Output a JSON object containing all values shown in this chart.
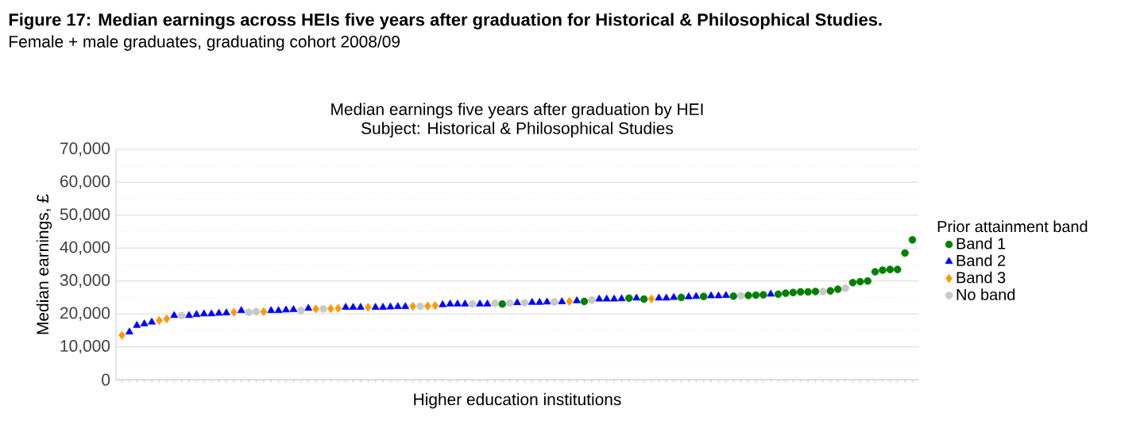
{
  "chart_data": {
    "type": "scatter",
    "title": "**Figure 17: Median earnings across HEIs five years after graduation for Historical & Philosophical Studies.**",
    "subtitle": "Female + male graduates, graduating cohort 2008/09",
    "annotations": [
      "Median earnings five years after graduation by HEI",
      "Subject: Historical & Philosophical Studies"
    ],
    "xlabel": "Higher education institutions",
    "ylabel": "Median earnings, £",
    "legend_title": "Prior attainment band",
    "legend": "right",
    "grid": "y",
    "ylim": [
      0,
      70000
    ],
    "yticks": [
      0,
      {
        "value": 10000,
        "label": "10,000"
      },
      {
        "value": 20000,
        "label": "20,000"
      },
      {
        "value": 30000,
        "label": "30,000"
      },
      {
        "value": 40000,
        "label": "40,000"
      },
      {
        "value": 50000,
        "label": "50,000"
      },
      {
        "value": 60000,
        "label": "60,000"
      },
      {
        "value": 70000,
        "label": "70,000"
      }
    ],
    "categories": [
      null,
      null,
      null,
      null,
      null,
      null,
      null,
      null,
      null,
      null,
      null,
      null,
      null,
      null,
      null,
      null,
      null,
      null,
      null,
      null,
      null,
      null,
      null,
      null,
      null,
      null,
      null,
      null,
      null,
      null,
      null,
      null,
      null,
      null,
      null,
      null,
      null,
      null,
      null,
      null,
      null,
      null,
      null,
      null,
      null,
      null,
      null,
      null,
      null,
      null,
      null,
      null,
      null,
      null,
      null,
      null,
      null,
      null,
      null,
      null,
      null,
      null,
      null,
      null,
      null,
      null,
      null,
      null,
      null,
      null,
      null,
      null,
      null,
      null,
      null,
      null,
      null,
      null,
      null,
      null,
      null,
      null,
      null,
      null,
      null,
      null,
      null,
      null,
      null,
      null,
      null,
      null,
      null,
      null,
      null,
      null,
      null,
      null,
      null,
      null,
      null,
      null,
      null,
      null,
      null,
      null,
      null
    ],
    "series": [
      {
        "name": "Band 1",
        "color": "#008000",
        "marker": "circle",
        "values": [
          null,
          null,
          null,
          null,
          null,
          null,
          null,
          null,
          null,
          null,
          null,
          null,
          null,
          null,
          null,
          null,
          null,
          null,
          null,
          null,
          null,
          null,
          null,
          null,
          null,
          null,
          null,
          null,
          null,
          null,
          null,
          null,
          null,
          null,
          null,
          null,
          null,
          null,
          null,
          null,
          null,
          null,
          null,
          null,
          null,
          null,
          null,
          null,
          null,
          null,
          null,
          23000,
          null,
          null,
          null,
          null,
          null,
          null,
          null,
          null,
          null,
          null,
          23800,
          null,
          null,
          null,
          null,
          null,
          24800,
          null,
          24500,
          null,
          null,
          null,
          null,
          25000,
          null,
          null,
          25300,
          null,
          null,
          null,
          25400,
          null,
          25600,
          25700,
          25800,
          null,
          26000,
          26300,
          26500,
          26700,
          26700,
          26800,
          null,
          27000,
          27500,
          null,
          29500,
          29800,
          30000,
          32800,
          33300,
          33500,
          33500,
          38500,
          42500
        ]
      },
      {
        "name": "Band 2",
        "color": "#0000ff",
        "marker": "triangle",
        "values": [
          null,
          14500,
          16500,
          17000,
          17500,
          null,
          null,
          19500,
          null,
          19500,
          19800,
          20000,
          20000,
          20200,
          20300,
          null,
          21000,
          null,
          null,
          null,
          21000,
          21000,
          21200,
          21300,
          null,
          21700,
          null,
          null,
          null,
          null,
          22000,
          22000,
          22000,
          null,
          22000,
          22000,
          22100,
          22200,
          22200,
          null,
          null,
          null,
          null,
          22800,
          23000,
          23000,
          23000,
          null,
          23000,
          23000,
          null,
          null,
          null,
          23400,
          null,
          23500,
          23500,
          23600,
          null,
          23700,
          null,
          24000,
          null,
          null,
          24500,
          24500,
          24500,
          24600,
          null,
          24800,
          null,
          null,
          24800,
          24800,
          25000,
          null,
          25200,
          25300,
          null,
          25500,
          25500,
          25600,
          null,
          null,
          null,
          null,
          null,
          26000,
          null,
          null,
          null,
          null,
          null,
          null,
          null,
          null,
          null,
          null,
          null,
          null,
          null,
          null,
          null,
          null,
          null,
          null,
          null
        ]
      },
      {
        "name": "Band 3",
        "color": "#ff9900",
        "marker": "diamond",
        "values": [
          13500,
          null,
          null,
          null,
          null,
          18000,
          18500,
          null,
          null,
          null,
          null,
          null,
          null,
          null,
          null,
          20500,
          null,
          null,
          null,
          20700,
          null,
          null,
          null,
          null,
          null,
          null,
          21500,
          null,
          21600,
          21700,
          null,
          null,
          null,
          22000,
          null,
          null,
          null,
          null,
          null,
          22300,
          null,
          22400,
          22500,
          null,
          null,
          null,
          null,
          null,
          null,
          null,
          null,
          null,
          null,
          null,
          null,
          null,
          null,
          null,
          null,
          null,
          23800,
          null,
          null,
          null,
          null,
          null,
          null,
          null,
          null,
          null,
          null,
          24600,
          null,
          null,
          null,
          null,
          null,
          null,
          null,
          null,
          null,
          null,
          null,
          null,
          null,
          null,
          null,
          null,
          null,
          null,
          null,
          null,
          null,
          null,
          null,
          null,
          null,
          null,
          null,
          null,
          null,
          null,
          null,
          null,
          null,
          null,
          null
        ]
      },
      {
        "name": "No band",
        "color": "#c8c8c8",
        "marker": "circle",
        "values": [
          null,
          null,
          null,
          null,
          null,
          null,
          null,
          null,
          19500,
          null,
          null,
          null,
          null,
          null,
          null,
          null,
          null,
          20500,
          20700,
          null,
          null,
          null,
          null,
          null,
          21000,
          null,
          null,
          21500,
          null,
          null,
          null,
          null,
          null,
          null,
          null,
          null,
          null,
          null,
          null,
          null,
          22300,
          null,
          null,
          null,
          null,
          null,
          null,
          23000,
          null,
          null,
          23200,
          null,
          23300,
          null,
          23400,
          null,
          null,
          null,
          23600,
          null,
          null,
          null,
          null,
          24200,
          null,
          null,
          null,
          null,
          null,
          null,
          null,
          null,
          null,
          null,
          null,
          null,
          null,
          null,
          null,
          null,
          null,
          null,
          null,
          25500,
          null,
          null,
          null,
          null,
          null,
          null,
          null,
          null,
          null,
          null,
          26800,
          null,
          null,
          27800,
          null,
          null,
          null,
          null,
          null,
          null,
          null,
          null,
          null
        ]
      }
    ]
  }
}
